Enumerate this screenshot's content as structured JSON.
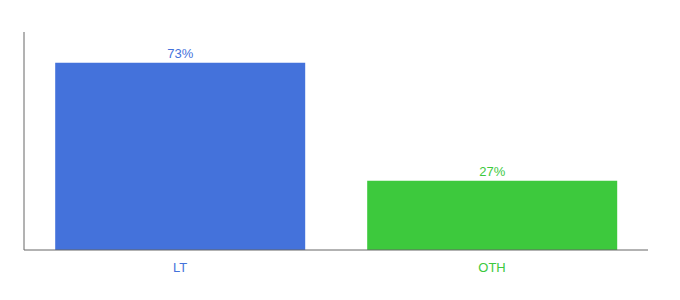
{
  "chart_data": {
    "type": "bar",
    "categories": [
      "LT",
      "OTH"
    ],
    "values": [
      73,
      27
    ],
    "value_labels": [
      "73%",
      "27%"
    ],
    "colors": [
      "#4472db",
      "#3dc93d"
    ],
    "ylim": [
      0,
      85
    ],
    "grid": false,
    "data_labels": true,
    "tick_labels": "x"
  }
}
